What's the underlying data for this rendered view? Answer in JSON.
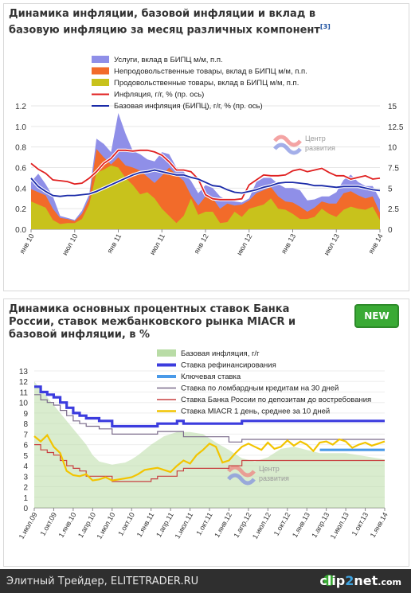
{
  "chart_data": [
    {
      "type": "area",
      "title": "Динамика инфляции, базовой инфляции и вклад в базовую инфляцию за месяц различных компонент",
      "title_ref": "[3]",
      "ylim_left": [
        0,
        1.2
      ],
      "ylim_right": [
        0,
        15
      ],
      "yticks_left": [
        "0.0",
        "0.2",
        "0.4",
        "0.6",
        "0.8",
        "1.0",
        "1.2"
      ],
      "yticks_right": [
        "0",
        "2.5",
        "5",
        "7.5",
        "10",
        "12.5",
        "15"
      ],
      "xticks": [
        "янв 10",
        "июл 10",
        "янв 11",
        "июл 11",
        "янв 12",
        "июл 12",
        "янв 13",
        "июл 13",
        "янв 14"
      ],
      "watermark": [
        "Центр",
        "развития"
      ],
      "series": [
        {
          "name": "Услуги, вклад в БИПЦ м/м, п.п.",
          "kind": "stack",
          "color": "#8f8fe8",
          "values": [
            0.46,
            0.54,
            0.44,
            0.32,
            0.13,
            0.11,
            0.09,
            0.18,
            0.34,
            0.88,
            0.83,
            0.75,
            1.13,
            0.93,
            0.76,
            0.73,
            0.68,
            0.66,
            0.75,
            0.73,
            0.6,
            0.56,
            0.47,
            0.35,
            0.43,
            0.4,
            0.32,
            0.28,
            0.27,
            0.26,
            0.3,
            0.46,
            0.5,
            0.5,
            0.44,
            0.4,
            0.4,
            0.38,
            0.28,
            0.29,
            0.32,
            0.32,
            0.36,
            0.48,
            0.53,
            0.46,
            0.42,
            0.42,
            0.29
          ]
        },
        {
          "name": "Непродовольственные товары, вклад в БИПЦ м/м, п.п.",
          "kind": "stack",
          "color": "#f26b2a",
          "values": [
            0.39,
            0.36,
            0.33,
            0.2,
            0.11,
            0.1,
            0.08,
            0.15,
            0.3,
            0.78,
            0.7,
            0.63,
            0.7,
            0.62,
            0.6,
            0.57,
            0.51,
            0.45,
            0.52,
            0.6,
            0.53,
            0.47,
            0.33,
            0.23,
            0.32,
            0.3,
            0.2,
            0.25,
            0.23,
            0.24,
            0.28,
            0.35,
            0.38,
            0.41,
            0.32,
            0.27,
            0.26,
            0.22,
            0.17,
            0.21,
            0.27,
            0.25,
            0.25,
            0.35,
            0.37,
            0.33,
            0.3,
            0.32,
            0.16
          ]
        },
        {
          "name": "Продовольственные товары, вклад в БИПЦ м/м, п.п.",
          "kind": "stack",
          "color": "#c8c21c",
          "values": [
            0.27,
            0.24,
            0.21,
            0.09,
            0.05,
            0.06,
            0.06,
            0.1,
            0.24,
            0.55,
            0.58,
            0.62,
            0.6,
            0.5,
            0.43,
            0.34,
            0.36,
            0.3,
            0.2,
            0.13,
            0.06,
            0.13,
            0.3,
            0.14,
            0.17,
            0.17,
            0.06,
            0.07,
            0.17,
            0.12,
            0.2,
            0.22,
            0.24,
            0.3,
            0.2,
            0.19,
            0.15,
            0.1,
            0.1,
            0.12,
            0.2,
            0.15,
            0.12,
            0.19,
            0.22,
            0.2,
            0.19,
            0.22,
            0.09
          ]
        },
        {
          "name": "Инфляция, г/г, % (пр. ось)",
          "kind": "line",
          "axis": "right",
          "color": "#e02020",
          "values": [
            8.0,
            7.3,
            6.8,
            6.0,
            5.9,
            5.8,
            5.5,
            5.6,
            6.2,
            7.0,
            8.0,
            8.6,
            9.6,
            9.6,
            9.5,
            9.6,
            9.6,
            9.4,
            9.0,
            8.2,
            7.2,
            7.2,
            7.0,
            6.1,
            4.2,
            3.7,
            3.6,
            3.6,
            3.6,
            3.7,
            5.4,
            6.0,
            6.6,
            6.5,
            6.5,
            6.6,
            7.1,
            7.3,
            7.0,
            7.2,
            7.4,
            6.9,
            6.5,
            6.5,
            6.1,
            6.3,
            6.5,
            6.1,
            6.2
          ]
        },
        {
          "name": "Базовая инфляция  (БИПЦ), г/г, % (пр. ось)",
          "kind": "line",
          "axis": "right",
          "color": "#1a2aa8",
          "values": [
            6.2,
            5.2,
            4.6,
            4.1,
            4.0,
            4.1,
            4.1,
            4.2,
            4.3,
            4.6,
            5.0,
            5.4,
            5.8,
            6.2,
            6.6,
            6.9,
            7.0,
            7.2,
            7.0,
            6.8,
            6.6,
            6.6,
            6.3,
            6.1,
            5.7,
            5.3,
            5.2,
            4.8,
            4.5,
            4.4,
            4.6,
            4.8,
            5.1,
            5.3,
            5.6,
            5.7,
            5.7,
            5.6,
            5.5,
            5.3,
            5.3,
            5.2,
            5.1,
            5.2,
            5.2,
            5.2,
            5.0,
            4.8,
            4.7
          ]
        }
      ]
    },
    {
      "type": "line",
      "title": "Динамика основных процентных ставок Банка России, ставок межбанковского рынка MIACR и базовой инфляции, в %",
      "badge": "NEW",
      "ylim": [
        0,
        13
      ],
      "yticks": [
        "0",
        "1",
        "2",
        "3",
        "4",
        "5",
        "6",
        "7",
        "8",
        "9",
        "10",
        "11",
        "12",
        "13"
      ],
      "xticks": [
        "1.июл.09",
        "1.окт.09",
        "1.янв.10",
        "1.апр.10",
        "1.июл.10",
        "1.окт.10",
        "1.янв.11",
        "1.апр.11",
        "1.июл.11",
        "1.окт.11",
        "1.янв.12",
        "1.апр.12",
        "1.июл.12",
        "1.окт.12",
        "1.янв.13",
        "1.апр.13",
        "1.июл.13",
        "1.окт.13",
        "1.янв.14"
      ],
      "watermark": [
        "Центр",
        "развития"
      ],
      "series": [
        {
          "name": "Базовая инфляция, г/г",
          "kind": "area",
          "color": "#b9dca6",
          "x": [
            0,
            2,
            4,
            6,
            8,
            9,
            10,
            12,
            13,
            14,
            15,
            16,
            18,
            20,
            22,
            24,
            26,
            28,
            30,
            32,
            34,
            36,
            38,
            40,
            42,
            44,
            46,
            48,
            52,
            54
          ],
          "values": [
            12.0,
            10.5,
            9.0,
            7.5,
            6.0,
            5.0,
            4.4,
            4.1,
            4.2,
            4.3,
            4.6,
            5.0,
            6.0,
            6.8,
            7.2,
            7.2,
            7.0,
            6.2,
            5.5,
            4.7,
            4.4,
            4.8,
            5.6,
            5.8,
            5.5,
            5.2,
            5.2,
            5.2,
            4.8,
            4.6
          ]
        },
        {
          "name": "Ставка рефинансирования",
          "kind": "step",
          "color": "#3c3cde",
          "x": [
            0,
            1,
            2,
            3,
            4,
            5,
            6,
            7,
            8,
            10,
            12,
            18,
            19,
            22,
            23,
            30,
            32,
            54
          ],
          "values": [
            11.5,
            11.0,
            10.75,
            10.5,
            10.0,
            9.5,
            9.0,
            8.75,
            8.5,
            8.25,
            7.75,
            7.75,
            8.0,
            8.25,
            8.0,
            8.0,
            8.25,
            8.25
          ]
        },
        {
          "name": "Ключевая ставка",
          "kind": "step",
          "color": "#4a9ae8",
          "x": [
            44,
            54
          ],
          "values": [
            5.5,
            5.5
          ]
        },
        {
          "name": "Ставка по ломбардным  кредитам на 30 дней",
          "kind": "step",
          "color": "#7a6a8a",
          "x": [
            0,
            1,
            2,
            3,
            4,
            5,
            6,
            7,
            8,
            10,
            12,
            18,
            19,
            22,
            23,
            30,
            32,
            54
          ],
          "values": [
            10.75,
            10.25,
            10.0,
            9.75,
            9.25,
            8.75,
            8.25,
            8.0,
            7.75,
            7.5,
            7.0,
            7.0,
            7.25,
            7.25,
            6.75,
            6.25,
            6.5,
            6.5
          ]
        },
        {
          "name": "Ставка Банка России по депозитам до востребования",
          "kind": "step",
          "color": "#c84040",
          "x": [
            0,
            1,
            2,
            3,
            4,
            5,
            6,
            7,
            8,
            12,
            14,
            18,
            19,
            22,
            23,
            30,
            32,
            54
          ],
          "values": [
            6.0,
            5.5,
            5.25,
            5.0,
            4.5,
            4.0,
            3.75,
            3.5,
            3.0,
            2.5,
            2.5,
            2.75,
            3.0,
            3.5,
            3.75,
            4.0,
            4.5,
            4.5
          ]
        },
        {
          "name": "Ставка MIACR 1 день, среднее за 10 дней",
          "kind": "line",
          "color": "#f2c400",
          "x": [
            0,
            1,
            2,
            3,
            4,
            5,
            6,
            7,
            8,
            9,
            10,
            11,
            12,
            13,
            14,
            15,
            16,
            17,
            18,
            19,
            20,
            21,
            22,
            23,
            24,
            25,
            26,
            27,
            28,
            29,
            30,
            31,
            32,
            33,
            34,
            35,
            36,
            37,
            38,
            39,
            40,
            41,
            42,
            43,
            44,
            45,
            46,
            47,
            48,
            49,
            50,
            51,
            52,
            53,
            54
          ],
          "values": [
            6.8,
            6.3,
            6.9,
            5.8,
            5.2,
            3.5,
            3.1,
            3.0,
            3.2,
            2.6,
            2.7,
            2.9,
            2.6,
            2.7,
            2.8,
            2.9,
            3.2,
            3.6,
            3.7,
            3.8,
            3.6,
            3.4,
            4.0,
            4.5,
            4.2,
            5.0,
            5.5,
            6.1,
            5.8,
            4.3,
            4.5,
            5.2,
            5.8,
            6.1,
            5.8,
            5.5,
            6.2,
            5.6,
            5.8,
            6.4,
            5.9,
            6.3,
            6.0,
            5.4,
            6.2,
            6.3,
            6.0,
            6.5,
            6.3,
            5.7,
            6.0,
            6.2,
            5.9,
            6.1,
            6.3
          ]
        }
      ]
    }
  ],
  "footer": {
    "left": "Элитный Трейдер, ELITETRADER.RU",
    "brand_a": "clip",
    "brand_b": "2",
    "brand_c": "net",
    "brand_d": ".com"
  }
}
